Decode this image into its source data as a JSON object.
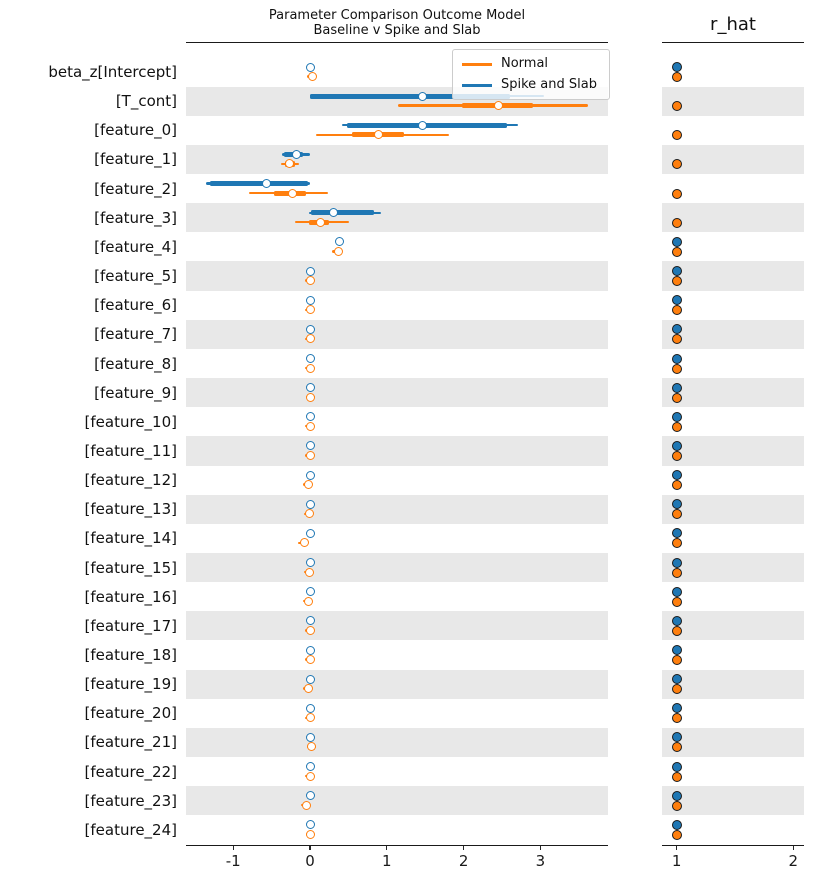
{
  "titles": {
    "main_line1": "Parameter Comparison Outcome Model",
    "main_line2": "Baseline v Spike and Slab",
    "rhat_panel": "r_hat"
  },
  "legend": {
    "entries": [
      {
        "label": "Normal",
        "color": "#ff7f0e"
      },
      {
        "label": "Spike and Slab",
        "color": "#1f77b4"
      }
    ]
  },
  "colors": {
    "normal": "#ff7f0e",
    "spike": "#1f77b4",
    "band": "#e8e8e8",
    "axis": "#1a1a1a"
  },
  "chart_data": {
    "type": "forest",
    "title": "Parameter Comparison Outcome Model Baseline v Spike and Slab",
    "models": [
      "Normal",
      "Spike and Slab"
    ],
    "panels": [
      "parameter estimates",
      "r_hat"
    ],
    "main_axis": {
      "ticks": [
        -1,
        0,
        1,
        2,
        3
      ],
      "range": [
        -1.6,
        3.85
      ]
    },
    "rhat_axis": {
      "ticks": [
        1,
        2
      ],
      "range": [
        0.87,
        2.1
      ]
    },
    "rows": [
      {
        "label": "beta_z[Intercept]",
        "shaded": false,
        "spike": {
          "lo": -0.03,
          "q25": -0.01,
          "med": 0.0,
          "q75": 0.01,
          "hi": 0.03,
          "rhat": 1.0
        },
        "normal": {
          "lo": -0.04,
          "q25": -0.01,
          "med": 0.03,
          "q75": 0.05,
          "hi": 0.08,
          "rhat": 1.0
        }
      },
      {
        "label": "[T_cont]",
        "shaded": true,
        "spike": {
          "lo": 0.0,
          "q25": 0.0,
          "med": 1.47,
          "q75": 2.6,
          "hi": 3.05,
          "rhat": null
        },
        "normal": {
          "lo": 1.15,
          "q25": 1.98,
          "med": 2.45,
          "q75": 2.9,
          "hi": 3.62,
          "rhat": 1.0
        }
      },
      {
        "label": "[feature_0]",
        "shaded": false,
        "spike": {
          "lo": 0.42,
          "q25": 0.48,
          "med": 1.47,
          "q75": 2.56,
          "hi": 2.71,
          "rhat": null
        },
        "normal": {
          "lo": 0.08,
          "q25": 0.55,
          "med": 0.89,
          "q75": 1.22,
          "hi": 1.81,
          "rhat": 1.0
        }
      },
      {
        "label": "[feature_1]",
        "shaded": true,
        "spike": {
          "lo": -0.36,
          "q25": -0.34,
          "med": -0.18,
          "q75": -0.09,
          "hi": 0.0,
          "rhat": null
        },
        "normal": {
          "lo": -0.38,
          "q25": -0.33,
          "med": -0.27,
          "q75": -0.2,
          "hi": -0.14,
          "rhat": 1.0
        }
      },
      {
        "label": "[feature_2]",
        "shaded": false,
        "spike": {
          "lo": -1.35,
          "q25": -1.3,
          "med": -0.56,
          "q75": -0.02,
          "hi": 0.0,
          "rhat": null
        },
        "normal": {
          "lo": -0.79,
          "q25": -0.47,
          "med": -0.23,
          "q75": -0.05,
          "hi": 0.23,
          "rhat": 1.0
        }
      },
      {
        "label": "[feature_3]",
        "shaded": true,
        "spike": {
          "lo": -0.01,
          "q25": 0.01,
          "med": 0.3,
          "q75": 0.83,
          "hi": 0.92,
          "rhat": null
        },
        "normal": {
          "lo": -0.2,
          "q25": -0.01,
          "med": 0.14,
          "q75": 0.25,
          "hi": 0.51,
          "rhat": 1.0
        }
      },
      {
        "label": "[feature_4]",
        "shaded": false,
        "spike": {
          "lo": 0.39,
          "q25": 0.39,
          "med": 0.39,
          "q75": 0.39,
          "hi": 0.39,
          "rhat": 1.0
        },
        "normal": {
          "lo": 0.28,
          "q25": 0.33,
          "med": 0.37,
          "q75": 0.4,
          "hi": 0.42,
          "rhat": 1.0
        }
      },
      {
        "label": "[feature_5]",
        "shaded": true,
        "spike": {
          "lo": 0.0,
          "q25": 0.0,
          "med": 0.0,
          "q75": 0.0,
          "hi": 0.0,
          "rhat": 1.0
        },
        "normal": {
          "lo": -0.07,
          "q25": -0.04,
          "med": 0.0,
          "q75": 0.02,
          "hi": 0.04,
          "rhat": 1.0
        }
      },
      {
        "label": "[feature_6]",
        "shaded": false,
        "spike": {
          "lo": 0.0,
          "q25": 0.0,
          "med": 0.0,
          "q75": 0.0,
          "hi": 0.0,
          "rhat": 1.0
        },
        "normal": {
          "lo": -0.07,
          "q25": -0.04,
          "med": 0.0,
          "q75": 0.02,
          "hi": 0.04,
          "rhat": 1.0
        }
      },
      {
        "label": "[feature_7]",
        "shaded": true,
        "spike": {
          "lo": 0.0,
          "q25": 0.0,
          "med": 0.0,
          "q75": 0.0,
          "hi": 0.0,
          "rhat": 1.0
        },
        "normal": {
          "lo": -0.07,
          "q25": -0.04,
          "med": 0.0,
          "q75": 0.02,
          "hi": 0.04,
          "rhat": 1.0
        }
      },
      {
        "label": "[feature_8]",
        "shaded": false,
        "spike": {
          "lo": 0.0,
          "q25": 0.0,
          "med": 0.0,
          "q75": 0.0,
          "hi": 0.0,
          "rhat": 1.0
        },
        "normal": {
          "lo": -0.07,
          "q25": -0.04,
          "med": 0.0,
          "q75": 0.02,
          "hi": 0.04,
          "rhat": 1.0
        }
      },
      {
        "label": "[feature_9]",
        "shaded": true,
        "spike": {
          "lo": 0.0,
          "q25": 0.0,
          "med": 0.0,
          "q75": 0.0,
          "hi": 0.0,
          "rhat": 1.0
        },
        "normal": {
          "lo": -0.05,
          "q25": -0.01,
          "med": 0.01,
          "q75": 0.05,
          "hi": 0.06,
          "rhat": 1.0
        }
      },
      {
        "label": "[feature_10]",
        "shaded": false,
        "spike": {
          "lo": 0.0,
          "q25": 0.0,
          "med": 0.0,
          "q75": 0.0,
          "hi": 0.0,
          "rhat": 1.0
        },
        "normal": {
          "lo": -0.07,
          "q25": -0.04,
          "med": 0.0,
          "q75": 0.02,
          "hi": 0.04,
          "rhat": 1.0
        }
      },
      {
        "label": "[feature_11]",
        "shaded": true,
        "spike": {
          "lo": 0.0,
          "q25": 0.0,
          "med": 0.0,
          "q75": 0.0,
          "hi": 0.0,
          "rhat": 1.0
        },
        "normal": {
          "lo": -0.07,
          "q25": -0.04,
          "med": 0.0,
          "q75": 0.02,
          "hi": 0.04,
          "rhat": 1.0
        }
      },
      {
        "label": "[feature_12]",
        "shaded": false,
        "spike": {
          "lo": 0.0,
          "q25": 0.0,
          "med": 0.0,
          "q75": 0.0,
          "hi": 0.0,
          "rhat": 1.0
        },
        "normal": {
          "lo": -0.09,
          "q25": -0.06,
          "med": -0.02,
          "q75": 0.0,
          "hi": 0.02,
          "rhat": 1.0
        }
      },
      {
        "label": "[feature_13]",
        "shaded": true,
        "spike": {
          "lo": 0.0,
          "q25": 0.0,
          "med": 0.0,
          "q75": 0.0,
          "hi": 0.0,
          "rhat": 1.0
        },
        "normal": {
          "lo": -0.08,
          "q25": -0.05,
          "med": -0.01,
          "q75": 0.01,
          "hi": 0.03,
          "rhat": 1.0
        }
      },
      {
        "label": "[feature_14]",
        "shaded": false,
        "spike": {
          "lo": 0.0,
          "q25": 0.0,
          "med": 0.0,
          "q75": 0.0,
          "hi": 0.0,
          "rhat": 1.0
        },
        "normal": {
          "lo": -0.15,
          "q25": -0.11,
          "med": -0.07,
          "q75": -0.05,
          "hi": -0.03,
          "rhat": 1.0
        }
      },
      {
        "label": "[feature_15]",
        "shaded": true,
        "spike": {
          "lo": 0.0,
          "q25": 0.0,
          "med": 0.0,
          "q75": 0.0,
          "hi": 0.0,
          "rhat": 1.0
        },
        "normal": {
          "lo": -0.08,
          "q25": -0.05,
          "med": -0.01,
          "q75": 0.01,
          "hi": 0.03,
          "rhat": 1.0
        }
      },
      {
        "label": "[feature_16]",
        "shaded": false,
        "spike": {
          "lo": 0.0,
          "q25": 0.0,
          "med": 0.0,
          "q75": 0.0,
          "hi": 0.0,
          "rhat": 1.0
        },
        "normal": {
          "lo": -0.09,
          "q25": -0.06,
          "med": -0.02,
          "q75": 0.0,
          "hi": 0.02,
          "rhat": 1.0
        }
      },
      {
        "label": "[feature_17]",
        "shaded": true,
        "spike": {
          "lo": 0.0,
          "q25": 0.0,
          "med": 0.0,
          "q75": 0.0,
          "hi": 0.0,
          "rhat": 1.0
        },
        "normal": {
          "lo": -0.07,
          "q25": -0.04,
          "med": 0.0,
          "q75": 0.02,
          "hi": 0.04,
          "rhat": 1.0
        }
      },
      {
        "label": "[feature_18]",
        "shaded": false,
        "spike": {
          "lo": 0.0,
          "q25": 0.0,
          "med": 0.0,
          "q75": 0.0,
          "hi": 0.0,
          "rhat": 1.0
        },
        "normal": {
          "lo": -0.07,
          "q25": -0.04,
          "med": 0.0,
          "q75": 0.02,
          "hi": 0.04,
          "rhat": 1.0
        }
      },
      {
        "label": "[feature_19]",
        "shaded": true,
        "spike": {
          "lo": 0.0,
          "q25": 0.0,
          "med": 0.0,
          "q75": 0.0,
          "hi": 0.0,
          "rhat": 1.0
        },
        "normal": {
          "lo": -0.09,
          "q25": -0.06,
          "med": -0.02,
          "q75": 0.0,
          "hi": 0.02,
          "rhat": 1.0
        }
      },
      {
        "label": "[feature_20]",
        "shaded": false,
        "spike": {
          "lo": 0.0,
          "q25": 0.0,
          "med": 0.0,
          "q75": 0.0,
          "hi": 0.0,
          "rhat": 1.0
        },
        "normal": {
          "lo": -0.07,
          "q25": -0.04,
          "med": 0.0,
          "q75": 0.02,
          "hi": 0.04,
          "rhat": 1.0
        }
      },
      {
        "label": "[feature_21]",
        "shaded": true,
        "spike": {
          "lo": 0.0,
          "q25": 0.0,
          "med": 0.0,
          "q75": 0.0,
          "hi": 0.0,
          "rhat": 1.0
        },
        "normal": {
          "lo": -0.04,
          "q25": 0.0,
          "med": 0.02,
          "q75": 0.06,
          "hi": 0.08,
          "rhat": 1.0
        }
      },
      {
        "label": "[feature_22]",
        "shaded": false,
        "spike": {
          "lo": 0.0,
          "q25": 0.0,
          "med": 0.0,
          "q75": 0.0,
          "hi": 0.0,
          "rhat": 1.0
        },
        "normal": {
          "lo": -0.07,
          "q25": -0.04,
          "med": 0.0,
          "q75": 0.02,
          "hi": 0.04,
          "rhat": 1.0
        }
      },
      {
        "label": "[feature_23]",
        "shaded": true,
        "spike": {
          "lo": 0.0,
          "q25": 0.0,
          "med": 0.0,
          "q75": 0.0,
          "hi": 0.0,
          "rhat": 1.0
        },
        "normal": {
          "lo": -0.12,
          "q25": -0.09,
          "med": -0.05,
          "q75": -0.03,
          "hi": -0.01,
          "rhat": 1.0
        }
      },
      {
        "label": "[feature_24]",
        "shaded": false,
        "spike": {
          "lo": 0.0,
          "q25": 0.0,
          "med": 0.0,
          "q75": 0.0,
          "hi": 0.0,
          "rhat": 1.0
        },
        "normal": {
          "lo": -0.05,
          "q25": -0.02,
          "med": 0.01,
          "q75": 0.03,
          "hi": 0.05,
          "rhat": 1.0
        }
      }
    ]
  }
}
